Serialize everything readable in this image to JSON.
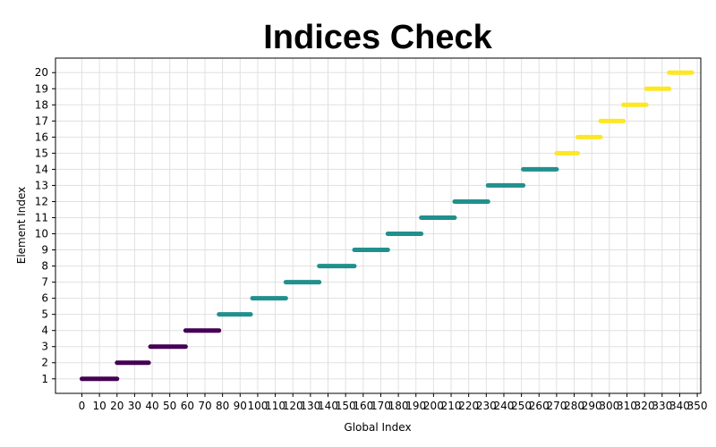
{
  "chart_data": {
    "type": "line",
    "title": "Indices Check",
    "xlabel": "Global Index",
    "ylabel": "Element Index",
    "xlim": [
      -15,
      352
    ],
    "ylim": [
      0.1,
      20.9
    ],
    "xticks": [
      0,
      10,
      20,
      30,
      40,
      50,
      60,
      70,
      80,
      90,
      100,
      110,
      120,
      130,
      140,
      150,
      160,
      170,
      180,
      190,
      200,
      210,
      220,
      230,
      240,
      250,
      260,
      270,
      280,
      290,
      300,
      310,
      320,
      330,
      340,
      350
    ],
    "yticks": [
      1,
      2,
      3,
      4,
      5,
      6,
      7,
      8,
      9,
      10,
      11,
      12,
      13,
      14,
      15,
      16,
      17,
      18,
      19,
      20
    ],
    "grid": true,
    "colors": {
      "low": "#440154",
      "mid": "#21908d",
      "high": "#fde725"
    },
    "segments": [
      {
        "element": 1,
        "x_start": 0,
        "x_end": 20,
        "color": "#440154"
      },
      {
        "element": 2,
        "x_start": 20,
        "x_end": 38,
        "color": "#440154"
      },
      {
        "element": 3,
        "x_start": 39,
        "x_end": 59,
        "color": "#440154"
      },
      {
        "element": 4,
        "x_start": 59,
        "x_end": 78,
        "color": "#440154"
      },
      {
        "element": 5,
        "x_start": 78,
        "x_end": 96,
        "color": "#21908d"
      },
      {
        "element": 6,
        "x_start": 97,
        "x_end": 116,
        "color": "#21908d"
      },
      {
        "element": 7,
        "x_start": 116,
        "x_end": 135,
        "color": "#21908d"
      },
      {
        "element": 8,
        "x_start": 135,
        "x_end": 155,
        "color": "#21908d"
      },
      {
        "element": 9,
        "x_start": 155,
        "x_end": 174,
        "color": "#21908d"
      },
      {
        "element": 10,
        "x_start": 174,
        "x_end": 193,
        "color": "#21908d"
      },
      {
        "element": 11,
        "x_start": 193,
        "x_end": 212,
        "color": "#21908d"
      },
      {
        "element": 12,
        "x_start": 212,
        "x_end": 231,
        "color": "#21908d"
      },
      {
        "element": 13,
        "x_start": 231,
        "x_end": 251,
        "color": "#21908d"
      },
      {
        "element": 14,
        "x_start": 251,
        "x_end": 270,
        "color": "#21908d"
      },
      {
        "element": 15,
        "x_start": 270,
        "x_end": 282,
        "color": "#fde725"
      },
      {
        "element": 16,
        "x_start": 282,
        "x_end": 295,
        "color": "#fde725"
      },
      {
        "element": 17,
        "x_start": 295,
        "x_end": 308,
        "color": "#fde725"
      },
      {
        "element": 18,
        "x_start": 308,
        "x_end": 321,
        "color": "#fde725"
      },
      {
        "element": 19,
        "x_start": 321,
        "x_end": 334,
        "color": "#fde725"
      },
      {
        "element": 20,
        "x_start": 334,
        "x_end": 347,
        "color": "#fde725"
      }
    ]
  }
}
